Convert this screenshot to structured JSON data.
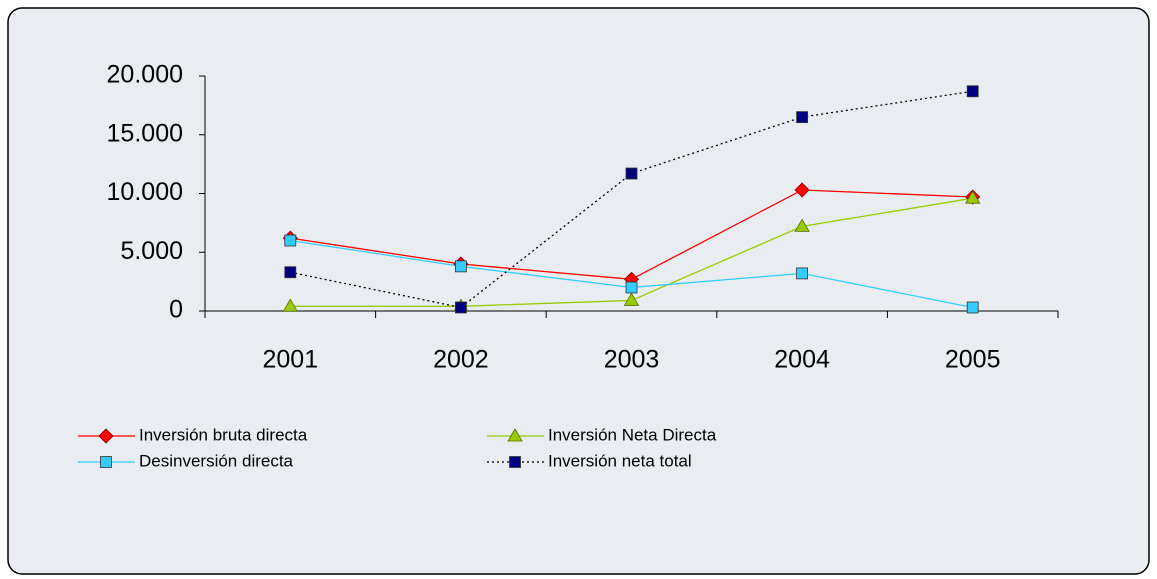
{
  "chart_data": {
    "type": "line",
    "categories": [
      "2001",
      "2002",
      "2003",
      "2004",
      "2005"
    ],
    "series": [
      {
        "name": "Inversión bruta directa",
        "color": "#ff0000",
        "marker": "diamond",
        "marker_color": "#ff0000",
        "dash": "solid",
        "values": [
          6200,
          4000,
          2700,
          10300,
          9700
        ]
      },
      {
        "name": "Inversión Neta Directa",
        "color": "#99cc00",
        "marker": "triangle",
        "marker_color": "#99cc00",
        "dash": "solid",
        "values": [
          400,
          400,
          900,
          7200,
          9600
        ]
      },
      {
        "name": "Desinversión directa",
        "color": "#33ccff",
        "marker": "square",
        "marker_color": "#33ccff",
        "dash": "solid",
        "values": [
          6000,
          3800,
          2000,
          3200,
          300
        ]
      },
      {
        "name": "Inversión neta total",
        "color": "#000000",
        "marker": "square",
        "marker_color": "#000080",
        "dash": "dotted",
        "values": [
          3300,
          300,
          11700,
          16500,
          18700
        ]
      }
    ],
    "ylim": [
      0,
      20000
    ],
    "yticks": [
      0,
      {
        "value": 5000,
        "label": "5.000"
      },
      {
        "value": 10000,
        "label": "10.000"
      },
      {
        "value": 15000,
        "label": "15.000"
      },
      {
        "value": 20000,
        "label": "20.000"
      }
    ],
    "grid": false,
    "legend": "bottom-left"
  }
}
